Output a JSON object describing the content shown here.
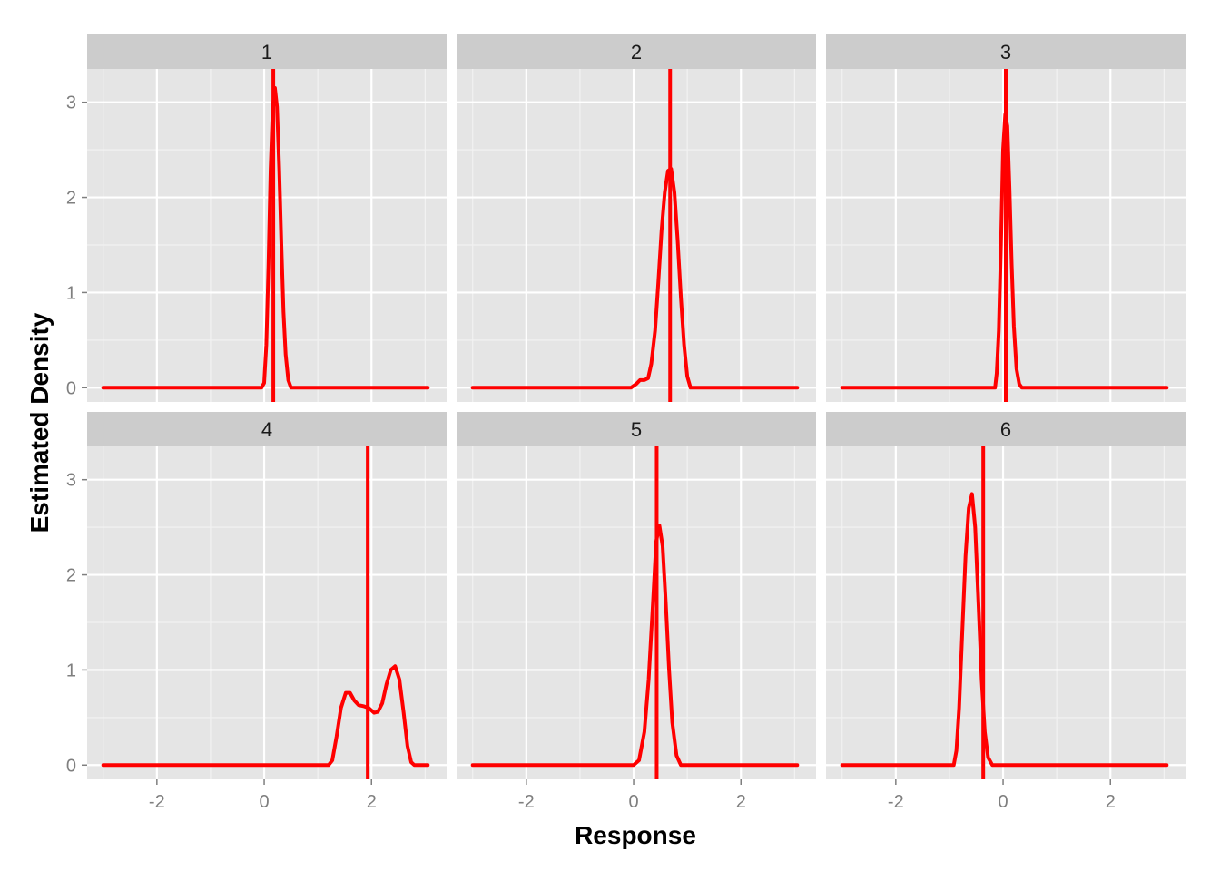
{
  "chart_data": {
    "type": "line",
    "xlabel": "Response",
    "ylabel": "Estimated Density",
    "xlim": [
      -3.3,
      3.4
    ],
    "ylim": [
      -0.15,
      3.35
    ],
    "x_ticks": [
      -2,
      0,
      2
    ],
    "x_tick_labels": [
      "-2",
      "0",
      "2"
    ],
    "y_ticks": [
      0,
      1,
      2,
      3
    ],
    "y_tick_labels": [
      "0",
      "1",
      "2",
      "3"
    ],
    "grid": true,
    "line_color": "#ff0000",
    "panel_background": "#e5e5e5",
    "strip_background": "#cccccc",
    "panels": [
      {
        "label": "1",
        "vline": 0.17,
        "series": {
          "x": [
            -3.0,
            -0.05,
            0.0,
            0.04,
            0.08,
            0.12,
            0.16,
            0.2,
            0.24,
            0.28,
            0.32,
            0.36,
            0.4,
            0.45,
            0.5,
            3.05
          ],
          "y": [
            0,
            0,
            0.05,
            0.45,
            1.3,
            2.3,
            2.95,
            3.15,
            2.95,
            2.3,
            1.5,
            0.8,
            0.35,
            0.08,
            0,
            0
          ]
        }
      },
      {
        "label": "2",
        "vline": 0.68,
        "series": {
          "x": [
            -3.0,
            -0.05,
            0.05,
            0.12,
            0.2,
            0.27,
            0.33,
            0.4,
            0.46,
            0.52,
            0.58,
            0.64,
            0.7,
            0.76,
            0.82,
            0.88,
            0.94,
            1.0,
            1.06,
            3.05
          ],
          "y": [
            0,
            0,
            0.04,
            0.08,
            0.08,
            0.1,
            0.25,
            0.6,
            1.1,
            1.65,
            2.05,
            2.28,
            2.3,
            2.05,
            1.55,
            0.95,
            0.45,
            0.12,
            0,
            0
          ]
        }
      },
      {
        "label": "3",
        "vline": 0.05,
        "series": {
          "x": [
            -3.0,
            -0.15,
            -0.12,
            -0.08,
            -0.04,
            0.0,
            0.04,
            0.08,
            0.12,
            0.16,
            0.2,
            0.25,
            0.3,
            0.35,
            3.05
          ],
          "y": [
            0,
            0,
            0.15,
            0.6,
            1.5,
            2.5,
            2.87,
            2.75,
            2.1,
            1.3,
            0.65,
            0.2,
            0.04,
            0,
            0
          ]
        }
      },
      {
        "label": "4",
        "vline": 1.93,
        "series": {
          "x": [
            -3.0,
            1.2,
            1.27,
            1.35,
            1.43,
            1.52,
            1.6,
            1.68,
            1.76,
            1.85,
            1.95,
            2.05,
            2.12,
            2.2,
            2.28,
            2.36,
            2.44,
            2.52,
            2.6,
            2.67,
            2.74,
            2.8,
            3.05
          ],
          "y": [
            0,
            0,
            0.05,
            0.3,
            0.6,
            0.76,
            0.76,
            0.68,
            0.63,
            0.62,
            0.6,
            0.55,
            0.56,
            0.65,
            0.85,
            1.0,
            1.04,
            0.9,
            0.55,
            0.2,
            0.03,
            0,
            0
          ]
        }
      },
      {
        "label": "5",
        "vline": 0.43,
        "series": {
          "x": [
            -3.0,
            0.0,
            0.1,
            0.2,
            0.28,
            0.36,
            0.42,
            0.48,
            0.54,
            0.6,
            0.66,
            0.72,
            0.8,
            0.88,
            3.05
          ],
          "y": [
            0,
            0,
            0.05,
            0.35,
            0.9,
            1.7,
            2.35,
            2.52,
            2.3,
            1.7,
            1.0,
            0.45,
            0.1,
            0,
            0
          ]
        }
      },
      {
        "label": "6",
        "vline": -0.37,
        "series": {
          "x": [
            -3.0,
            -0.92,
            -0.87,
            -0.82,
            -0.76,
            -0.7,
            -0.64,
            -0.58,
            -0.52,
            -0.46,
            -0.4,
            -0.34,
            -0.28,
            -0.2,
            3.05
          ],
          "y": [
            0,
            0,
            0.15,
            0.6,
            1.4,
            2.2,
            2.7,
            2.85,
            2.5,
            1.7,
            0.9,
            0.35,
            0.08,
            0,
            0
          ]
        }
      }
    ]
  }
}
